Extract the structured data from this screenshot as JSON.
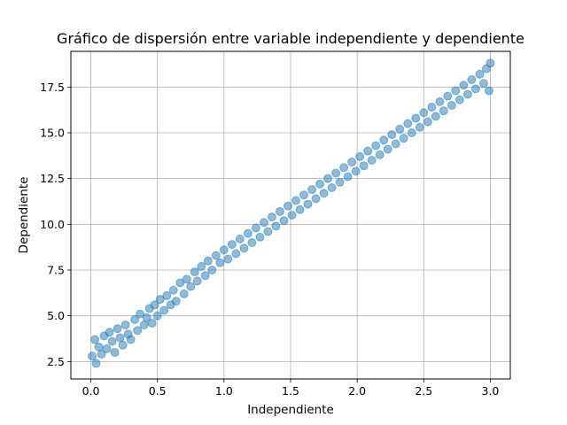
{
  "chart_data": {
    "type": "scatter",
    "title": "Gráfico de dispersión entre variable independiente y dependiente",
    "xlabel": "Independiente",
    "ylabel": "Dependiente",
    "xlim": [
      -0.15,
      3.15
    ],
    "ylim": [
      1.55,
      19.45
    ],
    "xticks": [
      0.0,
      0.5,
      1.0,
      1.5,
      2.0,
      2.5,
      3.0
    ],
    "xtick_labels": [
      "0.0",
      "0.5",
      "1.0",
      "1.5",
      "2.0",
      "2.5",
      "3.0"
    ],
    "yticks": [
      2.5,
      5.0,
      7.5,
      10.0,
      12.5,
      15.0,
      17.5
    ],
    "ytick_labels": [
      "2.5",
      "5.0",
      "7.5",
      "10.0",
      "12.5",
      "15.0",
      "17.5"
    ],
    "grid": true,
    "legend": "none",
    "series": [
      {
        "marker_color": "#1f77b4",
        "points": [
          [
            0.01,
            2.8
          ],
          [
            0.03,
            3.7
          ],
          [
            0.04,
            2.4
          ],
          [
            0.06,
            3.3
          ],
          [
            0.08,
            2.9
          ],
          [
            0.1,
            3.9
          ],
          [
            0.12,
            3.2
          ],
          [
            0.14,
            4.1
          ],
          [
            0.16,
            3.6
          ],
          [
            0.18,
            3.0
          ],
          [
            0.2,
            4.3
          ],
          [
            0.22,
            3.8
          ],
          [
            0.24,
            3.4
          ],
          [
            0.26,
            4.5
          ],
          [
            0.28,
            4.0
          ],
          [
            0.3,
            3.7
          ],
          [
            0.33,
            4.8
          ],
          [
            0.35,
            4.2
          ],
          [
            0.37,
            5.1
          ],
          [
            0.4,
            4.5
          ],
          [
            0.42,
            4.9
          ],
          [
            0.44,
            5.4
          ],
          [
            0.46,
            4.6
          ],
          [
            0.48,
            5.6
          ],
          [
            0.5,
            5.0
          ],
          [
            0.52,
            5.9
          ],
          [
            0.55,
            5.3
          ],
          [
            0.57,
            6.1
          ],
          [
            0.6,
            5.6
          ],
          [
            0.62,
            6.4
          ],
          [
            0.64,
            5.8
          ],
          [
            0.67,
            6.8
          ],
          [
            0.7,
            6.2
          ],
          [
            0.72,
            7.0
          ],
          [
            0.75,
            6.6
          ],
          [
            0.78,
            7.4
          ],
          [
            0.8,
            6.9
          ],
          [
            0.83,
            7.7
          ],
          [
            0.86,
            7.2
          ],
          [
            0.88,
            8.0
          ],
          [
            0.91,
            7.5
          ],
          [
            0.94,
            8.3
          ],
          [
            0.97,
            7.9
          ],
          [
            1.0,
            8.6
          ],
          [
            1.03,
            8.1
          ],
          [
            1.06,
            8.9
          ],
          [
            1.09,
            8.4
          ],
          [
            1.12,
            9.2
          ],
          [
            1.15,
            8.7
          ],
          [
            1.18,
            9.5
          ],
          [
            1.21,
            9.0
          ],
          [
            1.24,
            9.8
          ],
          [
            1.27,
            9.3
          ],
          [
            1.3,
            10.1
          ],
          [
            1.33,
            9.6
          ],
          [
            1.36,
            10.4
          ],
          [
            1.39,
            9.9
          ],
          [
            1.42,
            10.7
          ],
          [
            1.45,
            10.2
          ],
          [
            1.48,
            11.0
          ],
          [
            1.51,
            10.5
          ],
          [
            1.54,
            11.3
          ],
          [
            1.57,
            10.8
          ],
          [
            1.6,
            11.6
          ],
          [
            1.63,
            11.1
          ],
          [
            1.66,
            11.9
          ],
          [
            1.69,
            11.4
          ],
          [
            1.72,
            12.2
          ],
          [
            1.75,
            11.7
          ],
          [
            1.78,
            12.5
          ],
          [
            1.81,
            12.0
          ],
          [
            1.84,
            12.8
          ],
          [
            1.87,
            12.3
          ],
          [
            1.9,
            13.1
          ],
          [
            1.93,
            12.6
          ],
          [
            1.96,
            13.4
          ],
          [
            1.99,
            12.9
          ],
          [
            2.02,
            13.7
          ],
          [
            2.05,
            13.2
          ],
          [
            2.08,
            14.0
          ],
          [
            2.11,
            13.5
          ],
          [
            2.14,
            14.3
          ],
          [
            2.17,
            13.8
          ],
          [
            2.2,
            14.6
          ],
          [
            2.23,
            14.1
          ],
          [
            2.26,
            14.9
          ],
          [
            2.29,
            14.4
          ],
          [
            2.32,
            15.2
          ],
          [
            2.35,
            14.7
          ],
          [
            2.38,
            15.5
          ],
          [
            2.41,
            15.0
          ],
          [
            2.44,
            15.8
          ],
          [
            2.47,
            15.3
          ],
          [
            2.5,
            16.1
          ],
          [
            2.53,
            15.6
          ],
          [
            2.56,
            16.4
          ],
          [
            2.59,
            15.9
          ],
          [
            2.62,
            16.7
          ],
          [
            2.65,
            16.2
          ],
          [
            2.68,
            17.0
          ],
          [
            2.71,
            16.5
          ],
          [
            2.74,
            17.3
          ],
          [
            2.77,
            16.8
          ],
          [
            2.8,
            17.6
          ],
          [
            2.83,
            17.1
          ],
          [
            2.86,
            17.9
          ],
          [
            2.89,
            17.4
          ],
          [
            2.92,
            18.2
          ],
          [
            2.95,
            17.7
          ],
          [
            2.97,
            18.5
          ],
          [
            2.99,
            17.3
          ],
          [
            3.0,
            18.8
          ]
        ]
      }
    ]
  }
}
